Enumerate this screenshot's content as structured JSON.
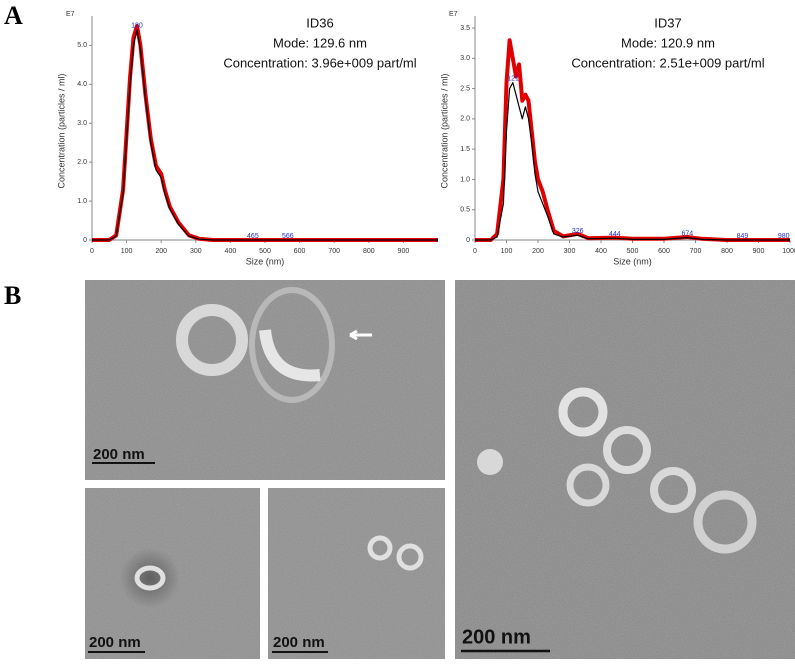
{
  "panel_labels": [
    "A",
    "B"
  ],
  "chart_data": [
    {
      "type": "line",
      "title": "ID36",
      "subtitle": [
        "Mode: 129.6 nm",
        "Concentration: 3.96e+009 part/ml"
      ],
      "x_label": "Size (nm)",
      "y_label": "Concentration (particles / ml)",
      "y_unit_label": "E7",
      "x": [
        0,
        50,
        70,
        90,
        110,
        120,
        130,
        140,
        155,
        170,
        185,
        200,
        210,
        225,
        250,
        280,
        310,
        350,
        500,
        700,
        1000
      ],
      "series": [
        {
          "color": "#e00000",
          "values": [
            0,
            0,
            0.12,
            1.3,
            4.2,
            5.2,
            5.5,
            5.0,
            3.7,
            2.6,
            1.9,
            1.7,
            1.3,
            0.85,
            0.45,
            0.12,
            0.03,
            0,
            0,
            0,
            0
          ]
        },
        {
          "color": "#000000",
          "values": [
            0,
            0,
            0.1,
            1.2,
            4.0,
            5.0,
            5.4,
            4.9,
            3.6,
            2.5,
            1.8,
            1.6,
            1.2,
            0.8,
            0.4,
            0.1,
            0.02,
            0,
            0,
            0,
            0
          ]
        }
      ],
      "annotations": [
        {
          "label": "130",
          "x": 130,
          "y": 5.4
        },
        {
          "label": "465",
          "x": 465,
          "y": 0
        },
        {
          "label": "566",
          "x": 566,
          "y": 0
        }
      ],
      "xlim": [
        0,
        1000
      ],
      "xticks": [
        0,
        100,
        200,
        300,
        400,
        500,
        600,
        700,
        800,
        900
      ],
      "ylim": [
        0,
        5.6
      ],
      "yticks": [
        0,
        {
          "value": 1.0,
          "label": "1.0"
        },
        {
          "value": 2.0,
          "label": "2.0"
        },
        {
          "value": 3.0,
          "label": "3.0"
        },
        {
          "value": 4.0,
          "label": "4.0"
        },
        {
          "value": 5.0,
          "label": "5.0"
        }
      ]
    },
    {
      "type": "line",
      "title": "ID37",
      "subtitle": [
        "Mode: 120.9 nm",
        "Concentration: 2.51e+009 part/ml"
      ],
      "x_label": "Size (nm)",
      "y_label": "Concentration (particles / ml)",
      "y_unit_label": "E7",
      "x": [
        0,
        50,
        70,
        90,
        100,
        110,
        120,
        130,
        140,
        150,
        160,
        170,
        180,
        190,
        200,
        215,
        230,
        250,
        280,
        326,
        360,
        444,
        500,
        600,
        674,
        720,
        800,
        900,
        1000
      ],
      "series": [
        {
          "color": "#e00000",
          "values": [
            0,
            0,
            0.1,
            1.0,
            2.6,
            3.3,
            3.0,
            2.7,
            2.9,
            2.3,
            2.4,
            2.3,
            1.8,
            1.3,
            1.0,
            0.8,
            0.5,
            0.15,
            0.06,
            0.1,
            0.03,
            0.04,
            0.02,
            0.02,
            0.05,
            0.02,
            0,
            0,
            0
          ]
        },
        {
          "color": "#000000",
          "values": [
            0,
            0,
            0.05,
            0.6,
            1.8,
            2.5,
            2.6,
            2.4,
            2.2,
            2.0,
            2.2,
            2.0,
            1.6,
            1.1,
            0.8,
            0.6,
            0.4,
            0.1,
            0.05,
            0.08,
            0.02,
            0.03,
            0.01,
            0.01,
            0.04,
            0.01,
            0,
            0,
            0
          ]
        }
      ],
      "annotations": [
        {
          "label": "121",
          "x": 121,
          "y": 2.6
        },
        {
          "label": "326",
          "x": 326,
          "y": 0.08
        },
        {
          "label": "444",
          "x": 444,
          "y": 0.03
        },
        {
          "label": "674",
          "x": 674,
          "y": 0.04
        },
        {
          "label": "849",
          "x": 849,
          "y": 0
        },
        {
          "label": "980",
          "x": 980,
          "y": 0
        }
      ],
      "xlim": [
        0,
        1000
      ],
      "xticks": [
        0,
        100,
        200,
        300,
        400,
        500,
        600,
        700,
        800,
        900,
        1000
      ],
      "ylim": [
        0,
        3.6
      ],
      "yticks": [
        0,
        {
          "value": 0.5,
          "label": "0.5"
        },
        {
          "value": 1.0,
          "label": "1.0"
        },
        {
          "value": 1.5,
          "label": "1.5"
        },
        {
          "value": 2.0,
          "label": "2.0"
        },
        {
          "value": 2.5,
          "label": "2.5"
        },
        {
          "value": 3.0,
          "label": "3.0"
        },
        {
          "value": 3.5,
          "label": "3.5"
        }
      ]
    }
  ],
  "images": [
    {
      "scale_bar": "200 nm"
    },
    {
      "scale_bar": "200 nm"
    },
    {
      "scale_bar": "200 nm"
    },
    {
      "scale_bar": "200 nm"
    }
  ]
}
